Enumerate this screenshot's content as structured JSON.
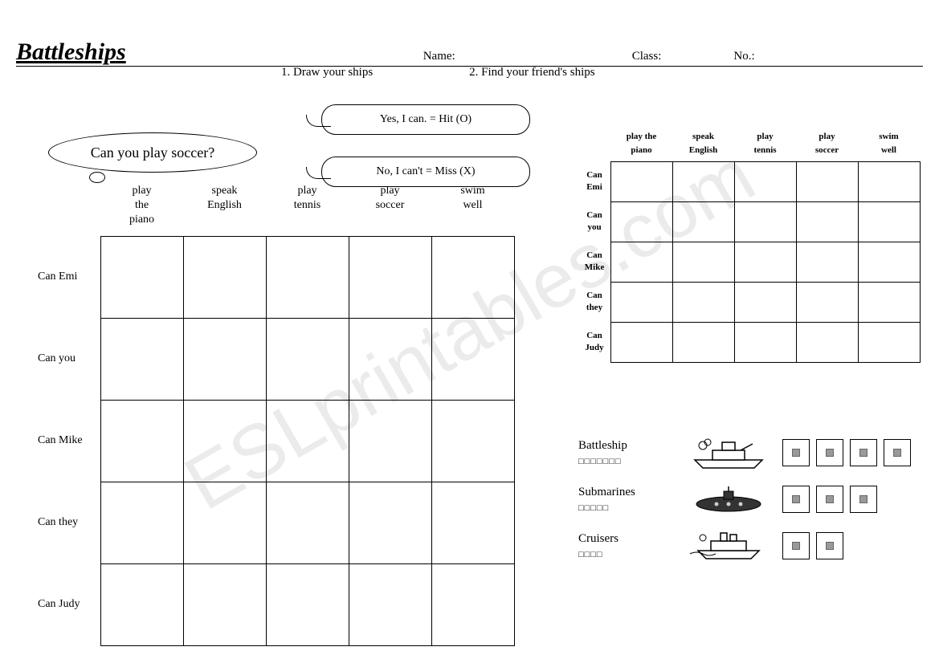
{
  "title": "Battleships",
  "header": {
    "name_label": "Name:",
    "class_label": "Class:",
    "no_label": "No.:"
  },
  "instructions": {
    "step1": "1. Draw your ships",
    "step2": "2. Find your friend's ships"
  },
  "question_bubble": "Can you play soccer?",
  "answer_hit": "Yes, I can.   =   Hit (O)",
  "answer_miss": "No, I can't   =   Miss (X)",
  "columns": [
    "play\nthe\npiano",
    "speak\nEnglish",
    "play\ntennis",
    "play\nsoccer",
    "swim\nwell"
  ],
  "rows": [
    "Can Emi",
    "Can you",
    "Can Mike",
    "Can they",
    "Can Judy"
  ],
  "small_columns": [
    "play  the\npiano",
    "speak\nEnglish",
    "play\ntennis",
    "play\nsoccer",
    "swim\nwell"
  ],
  "small_rows": [
    "Can\nEmi",
    "Can\nyou",
    "Can\nMike",
    "Can\nthey",
    "Can\nJudy"
  ],
  "legend": {
    "battleship": {
      "label": "Battleship",
      "sub": "□□□□□□□",
      "boxes": 4
    },
    "submarines": {
      "label": "Submarines",
      "sub": "□□□□□",
      "boxes": 3
    },
    "cruisers": {
      "label": "Cruisers",
      "sub": "□□□□",
      "boxes": 2
    }
  },
  "watermark": "ESLprintables.com",
  "colors": {
    "text": "#000000",
    "bg": "#ffffff",
    "box_inner": "#999999"
  }
}
